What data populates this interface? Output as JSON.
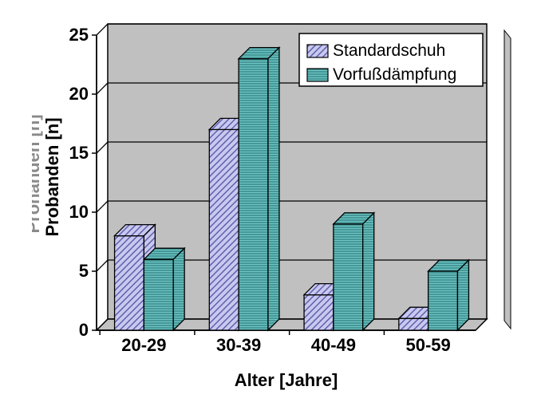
{
  "chart": {
    "type": "bar",
    "categories": [
      "20-29",
      "30-39",
      "40-49",
      "50-59"
    ],
    "series": [
      {
        "name": "Standardschuh",
        "values": [
          8,
          17,
          3,
          1
        ],
        "fill": "#c8c8f0",
        "stroke": "#5a5aa6",
        "pattern": "diag"
      },
      {
        "name": "Vorfußdämpfung",
        "values": [
          6,
          23,
          9,
          5
        ],
        "fill": "#6ec4c4",
        "stroke": "#2f7f7f",
        "pattern": "horiz"
      }
    ],
    "xlabel": "Alter [Jahre]",
    "ylabel": "Probanden [n]",
    "ylabel_ghost": "Prohanden [n]",
    "ylim": [
      0,
      25
    ],
    "ytick_step": 5,
    "plot_bg": "#c0c0c0",
    "front_wall": "#ffffff",
    "grid_color": "#000000",
    "axis_color": "#000000",
    "title_fontsize": 22,
    "label_fontsize": 22,
    "tick_fontsize": 22,
    "legend_fontsize": 21,
    "legend_border": "#000000",
    "legend_bg": "#ffffff",
    "bar_group_width": 0.62,
    "depth": 14
  }
}
